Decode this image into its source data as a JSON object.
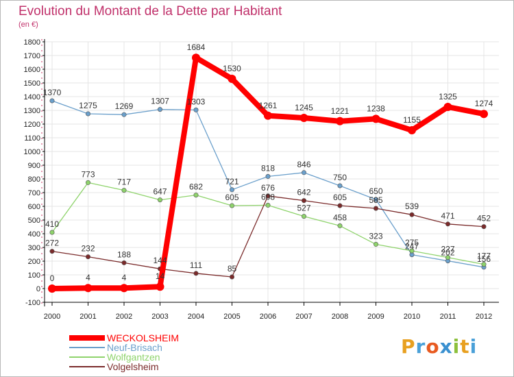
{
  "brand": {
    "name": "Proxiti",
    "letters": [
      {
        "ch": "P",
        "color": "#e8a020"
      },
      {
        "ch": "r",
        "color": "#4aa0d8"
      },
      {
        "ch": "o",
        "color": "#e85a20"
      },
      {
        "ch": "x",
        "color": "#3a90d0"
      },
      {
        "ch": "i",
        "color": "#8cc03c"
      },
      {
        "ch": "t",
        "color": "#e8a020"
      },
      {
        "ch": "i",
        "color": "#4aa0d8"
      }
    ]
  },
  "chart_data": {
    "type": "line",
    "title": "Evolution du Montant de la Dette par Habitant",
    "subtitle": "(en €)",
    "xlabel": "",
    "ylabel": "",
    "x": [
      "2000",
      "2001",
      "2002",
      "2003",
      "2004",
      "2005",
      "2006",
      "2007",
      "2008",
      "2009",
      "2010",
      "2011",
      "2012"
    ],
    "ylim": [
      -100,
      1800
    ],
    "yticks": [
      -100,
      0,
      100,
      200,
      300,
      400,
      500,
      600,
      700,
      800,
      900,
      1000,
      1100,
      1200,
      1300,
      1400,
      1500,
      1600,
      1700,
      1800
    ],
    "grid": true,
    "legend_position": "bottom-left",
    "series": [
      {
        "name": "WECKOLSHEIM",
        "color": "#ff0000",
        "emphasis": true,
        "values": [
          0,
          4,
          4,
          14,
          1684,
          1530,
          1261,
          1245,
          1221,
          1238,
          1155,
          1325,
          1274
        ],
        "labels": [
          "0",
          "4",
          "4",
          "14",
          "1684",
          "1530",
          "1261",
          "1245",
          "1221",
          "1238",
          "1155",
          "1325",
          "1274"
        ]
      },
      {
        "name": "Neuf-Brisach",
        "color": "#6a9fcb",
        "emphasis": false,
        "values": [
          1370,
          1275,
          1269,
          1307,
          1303,
          721,
          818,
          846,
          750,
          650,
          247,
          202,
          156
        ],
        "labels": [
          "1370",
          "1275",
          "1269",
          "1307",
          "1303",
          "721",
          "818",
          "846",
          "750",
          "650",
          "247",
          "202",
          "156"
        ]
      },
      {
        "name": "Wolfgantzen",
        "color": "#8ed36b",
        "emphasis": false,
        "values": [
          410,
          773,
          717,
          647,
          682,
          605,
          608,
          527,
          458,
          323,
          275,
          227,
          177
        ],
        "labels": [
          "410",
          "773",
          "717",
          "647",
          "682",
          "605",
          "608",
          "527",
          "458",
          "323",
          "275",
          "227",
          "177"
        ]
      },
      {
        "name": "Volgelsheim",
        "color": "#7a2a2a",
        "emphasis": false,
        "values": [
          272,
          232,
          188,
          144,
          111,
          85,
          676,
          642,
          605,
          585,
          539,
          471,
          452
        ],
        "labels": [
          "272",
          "232",
          "188",
          "144",
          "111",
          "85",
          "676",
          "642",
          "605",
          "585",
          "539",
          "471",
          "452"
        ]
      }
    ]
  }
}
